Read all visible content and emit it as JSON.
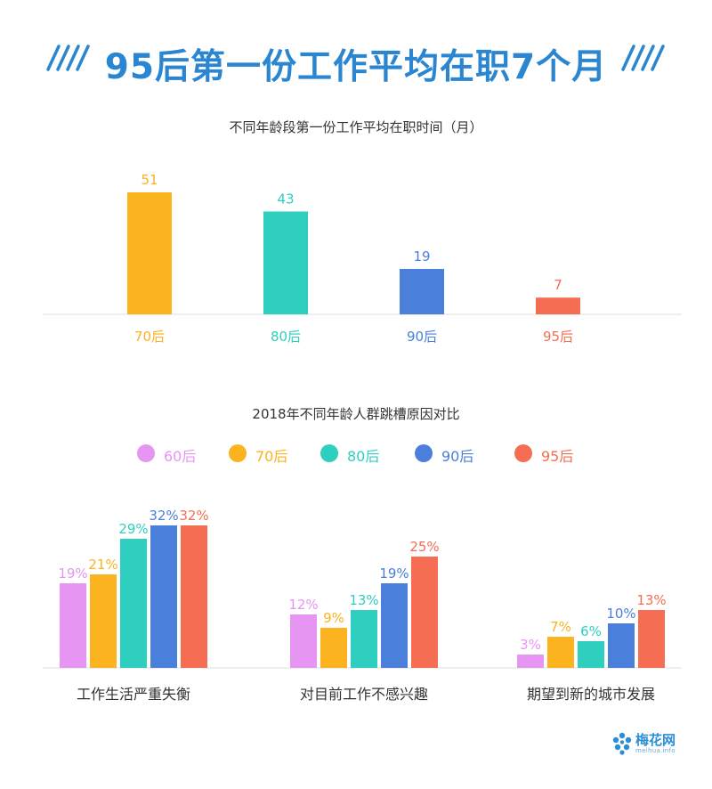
{
  "header": {
    "title": "95后第一份工作平均在职7个月",
    "accent": "#2a86d0"
  },
  "chart_data": [
    {
      "type": "bar",
      "title": "不同年龄段第一份工作平均在职时间（月）",
      "categories": [
        "70后",
        "80后",
        "90后",
        "95后"
      ],
      "values": [
        51,
        43,
        19,
        7
      ],
      "colors": [
        "#fbb31f",
        "#2ecfbf",
        "#4a7fdc",
        "#f56e54"
      ],
      "ylim": [
        0,
        51
      ],
      "grid": false
    },
    {
      "type": "bar",
      "title": "2018年不同年龄人群跳槽原因对比",
      "categories": [
        "工作生活严重失衡",
        "对目前工作不感兴趣",
        "期望到新的城市发展"
      ],
      "series": [
        {
          "name": "60后",
          "values": [
            19,
            12,
            3
          ],
          "color": "#e795f2"
        },
        {
          "name": "70后",
          "values": [
            21,
            9,
            7
          ],
          "color": "#fbb31f"
        },
        {
          "name": "80后",
          "values": [
            29,
            13,
            6
          ],
          "color": "#2ecfbf"
        },
        {
          "name": "90后",
          "values": [
            32,
            19,
            10
          ],
          "color": "#4a7fdc"
        },
        {
          "name": "95后",
          "values": [
            32,
            25,
            13
          ],
          "color": "#f56e54"
        }
      ],
      "value_suffix": "%",
      "ylim": [
        0,
        32
      ],
      "legend_position": "top",
      "grid": false
    }
  ],
  "logo": {
    "name": "梅花网",
    "url": "meihua.info"
  }
}
